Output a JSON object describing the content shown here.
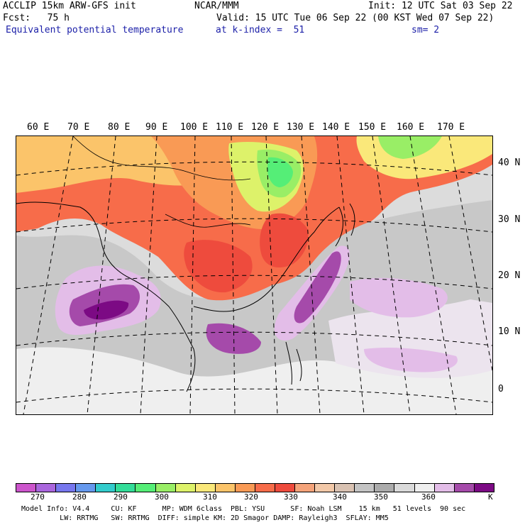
{
  "header": {
    "line1_left": "ACCLIP 15km ARW-GFS init",
    "line1_center": "NCAR/MMM",
    "line1_right": "Init: 12 UTC Sat 03 Sep 22",
    "line2_left": "Fcst:   75 h",
    "line2_right": "Valid: 15 UTC Tue 06 Sep 22 (00 KST Wed 07 Sep 22)",
    "line3_left": "Equivalent potential temperature",
    "line3_center": "at k-index =  51",
    "line3_right": "sm= 2"
  },
  "map": {
    "lon_labels": [
      "60 E",
      "70 E",
      "80 E",
      "90 E",
      "100 E",
      "110 E",
      "120 E",
      "130 E",
      "140 E",
      "150 E",
      "160 E",
      "170 E"
    ],
    "lat_labels": [
      "40 N",
      "30 N",
      "20 N",
      "10 N",
      "0"
    ]
  },
  "colorbar": {
    "unit": "K",
    "ticks": [
      "270",
      "280",
      "290",
      "300",
      "310",
      "320",
      "330",
      "340",
      "350",
      "360"
    ],
    "colors": [
      "#cc55cc",
      "#aa66dd",
      "#7777ee",
      "#6699ee",
      "#33cccc",
      "#33dd99",
      "#55ee77",
      "#99ee66",
      "#ddf26a",
      "#fae87a",
      "#fbc46a",
      "#f99a55",
      "#f76c4a",
      "#ee4b3d",
      "#f4a37a",
      "#f2c8a8",
      "#d9c2b2",
      "#c4c4c4",
      "#ababab",
      "#dadada",
      "#efefef",
      "#e3bde8",
      "#a54aaa",
      "#7c0a84"
    ]
  },
  "footer": {
    "line1": "Model Info: V4.4     CU: KF      MP: WDM 6class  PBL: YSU      SF: Noah LSM    15 km   51 levels  90 sec",
    "line2": "         LW: RRTMG   SW: RRTMG  DIFF: simple KM: 2D Smagor DAMP: Rayleigh3  SFLAY: MM5"
  }
}
